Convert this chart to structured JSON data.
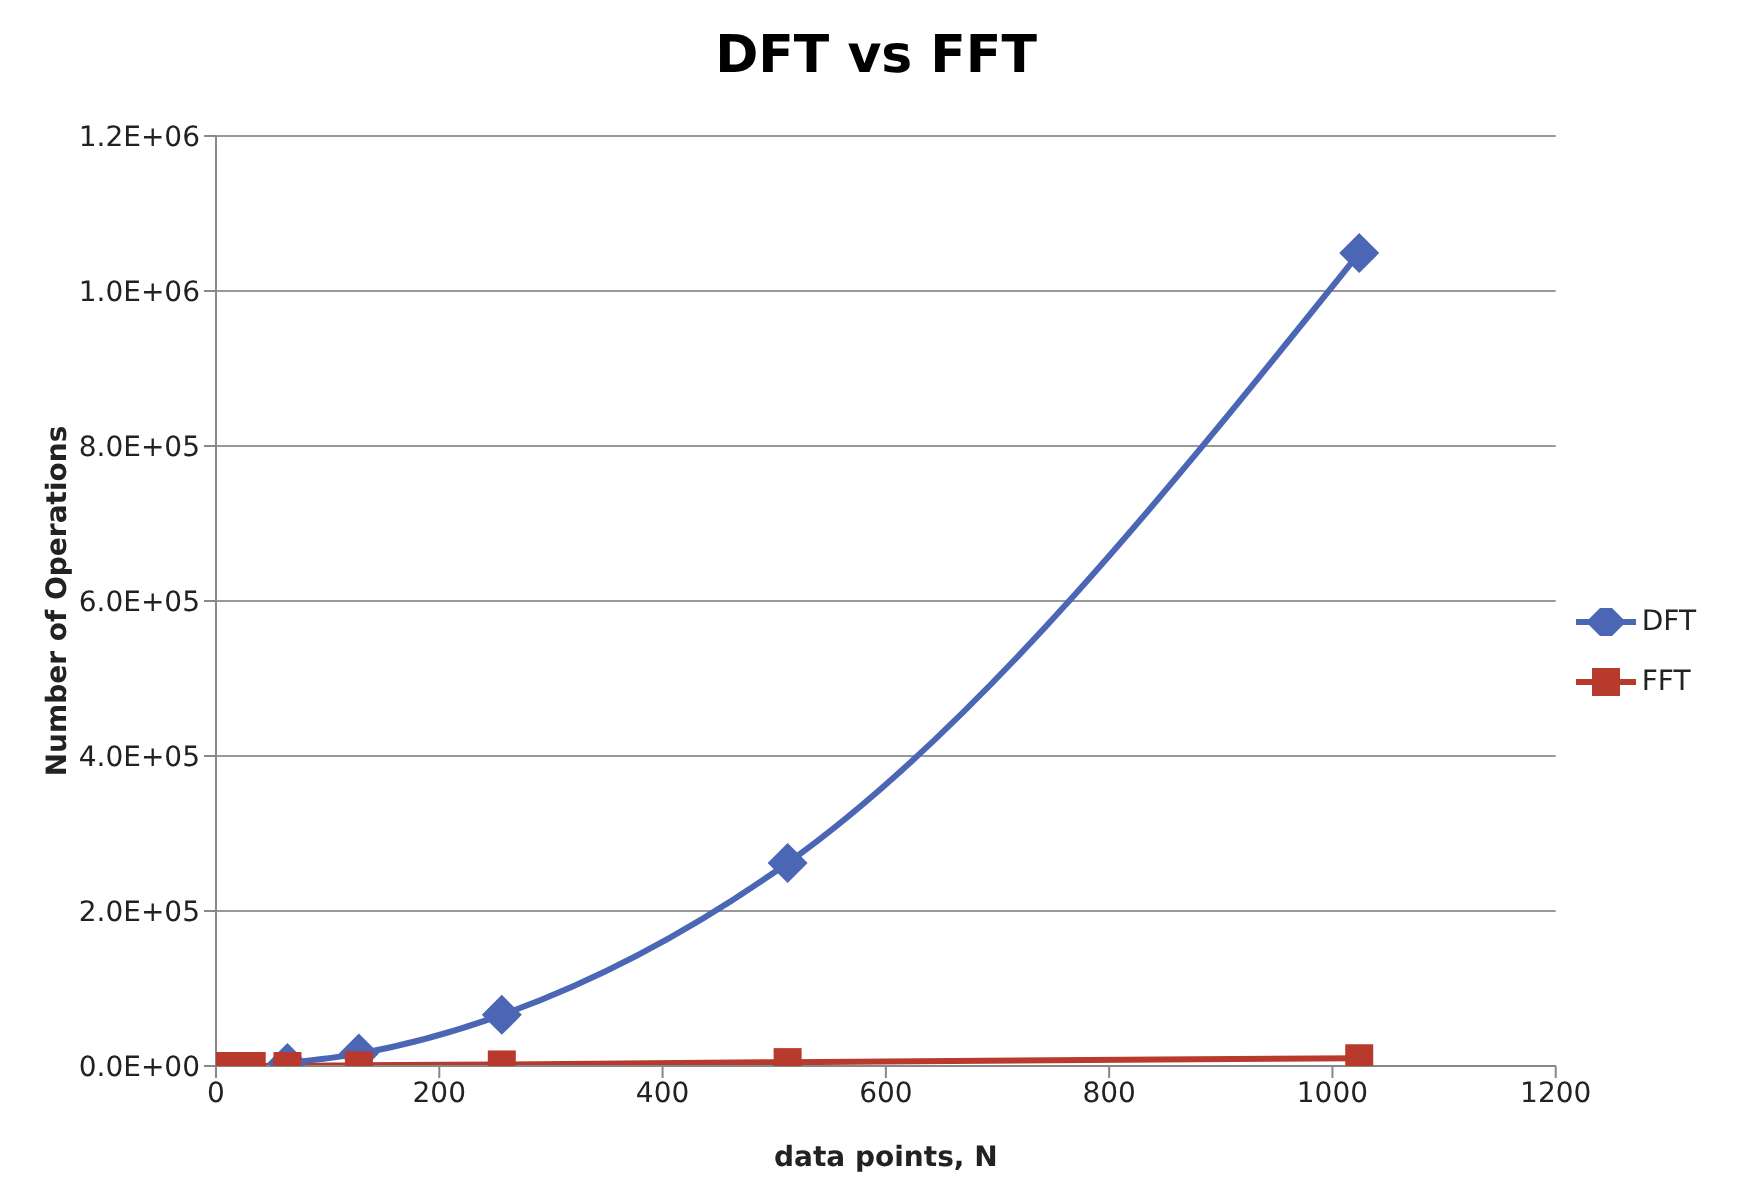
{
  "chart_data": {
    "type": "line",
    "title": "DFT vs FFT",
    "xlabel": "data points, N",
    "ylabel": "Number of Operations",
    "x": [
      2,
      4,
      8,
      16,
      32,
      64,
      128,
      256,
      512,
      1024
    ],
    "series": [
      {
        "name": "DFT",
        "color": "#4a66b5",
        "marker": "diamond",
        "values": [
          null,
          null,
          null,
          null,
          null,
          4000,
          16000,
          66000,
          262000,
          1049000
        ]
      },
      {
        "name": "FFT",
        "color": "#b83a2c",
        "marker": "square",
        "values": [
          0,
          0,
          0,
          0,
          0,
          0,
          1000,
          2000,
          5000,
          10000
        ]
      }
    ],
    "xlim": [
      0,
      1200
    ],
    "xticks": [
      0,
      200,
      400,
      600,
      800,
      1000,
      1200
    ],
    "ylim": [
      0,
      1200000
    ],
    "yticks": [
      {
        "value": 0,
        "label": "0.0E+00"
      },
      {
        "value": 200000,
        "label": "2.0E+05"
      },
      {
        "value": 400000,
        "label": "4.0E+05"
      },
      {
        "value": 600000,
        "label": "6.0E+05"
      },
      {
        "value": 800000,
        "label": "8.0E+05"
      },
      {
        "value": 1000000,
        "label": "1.0E+06"
      },
      {
        "value": 1200000,
        "label": "1.2E+06"
      }
    ],
    "grid": "y",
    "legend": "right",
    "line_style": "solid"
  }
}
